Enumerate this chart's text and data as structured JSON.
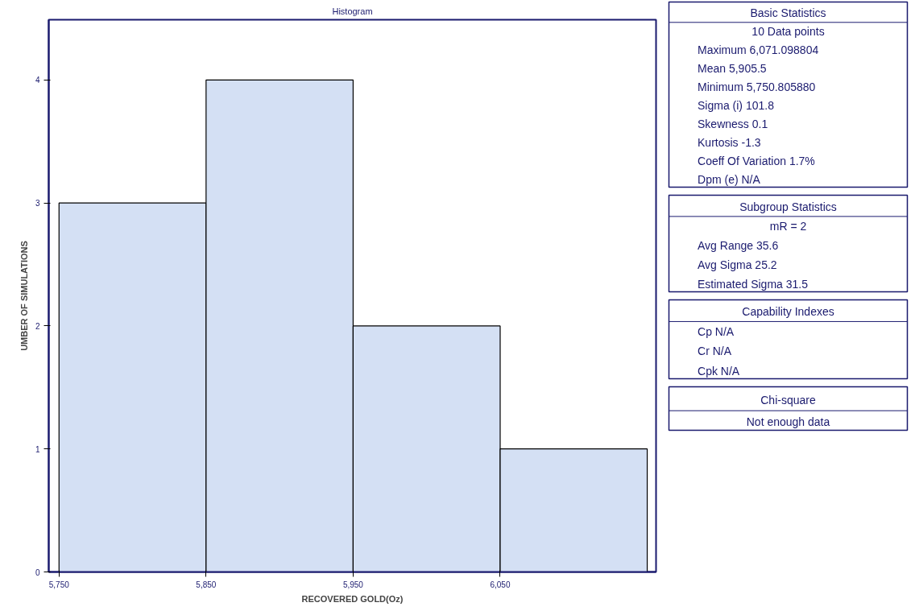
{
  "chart_data": [
    {
      "type": "histogram",
      "title": "Histogram",
      "xlabel": "RECOVERED GOLD(Oz)",
      "ylabel": "UMBER OF SIMULATIONS",
      "bins": [
        5750,
        5850,
        5950,
        6050,
        6150
      ],
      "values": [
        3,
        4,
        2,
        1
      ],
      "color": "#d4e0f4",
      "xlim": [
        5743,
        6156
      ],
      "ylim": [
        0,
        4.49
      ],
      "xticks": [
        {
          "value": 5750,
          "label": "5,750"
        },
        {
          "value": 5850,
          "label": "5,850"
        },
        {
          "value": 5950,
          "label": "5,950"
        },
        {
          "value": 6050,
          "label": "6,050"
        }
      ],
      "yticks": [
        0,
        1,
        2,
        3,
        4
      ],
      "grid": false
    },
    {
      "type": "other",
      "title": "Basic Statistics",
      "subtitle": "10 Data points",
      "annotations": [
        "Maximum 6,071.098804",
        "Mean 5,905.5",
        "Minimum 5,750.805880",
        "Sigma (i) 101.8",
        "Skewness 0.1",
        "Kurtosis -1.3",
        "Coeff Of Variation 1.7%",
        "Dpm (e) N/A"
      ]
    },
    {
      "type": "other",
      "title": "Subgroup Statistics",
      "subtitle": "mR = 2",
      "annotations": [
        "Avg Range 35.6",
        "Avg Sigma 25.2",
        "Estimated Sigma 31.5"
      ]
    },
    {
      "type": "other",
      "title": "Capability Indexes",
      "annotations": [
        "Cp N/A",
        "Cr N/A",
        "Cpk N/A"
      ]
    },
    {
      "type": "other",
      "title": "Chi-square",
      "subtitle": "Not enough data"
    }
  ]
}
